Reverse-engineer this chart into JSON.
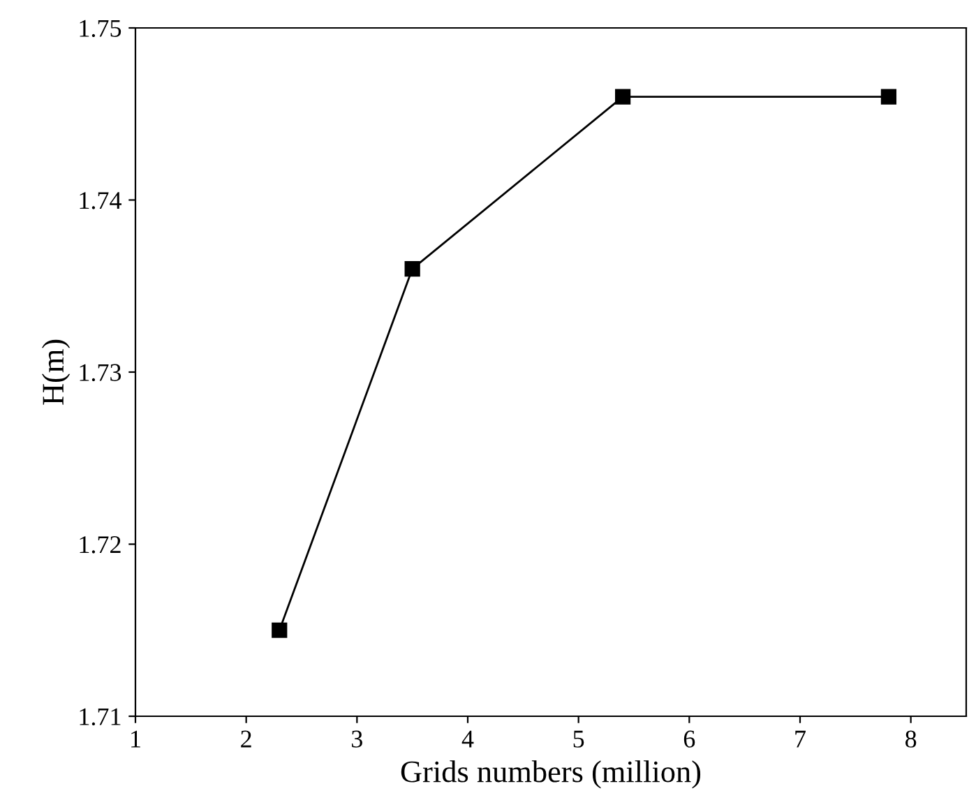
{
  "chart_data": {
    "type": "line",
    "xlabel": "Grids numbers (million)",
    "ylabel": "H(m)",
    "x": [
      2.3,
      3.5,
      5.4,
      7.8
    ],
    "series": [
      {
        "color": "#000000",
        "values": [
          1.715,
          1.736,
          1.746,
          1.746
        ]
      }
    ],
    "xlim": [
      1,
      8.5
    ],
    "xticks": [
      1,
      2,
      3,
      4,
      5,
      6,
      7,
      8
    ],
    "ylim": [
      1.71,
      1.75
    ],
    "yticks": [
      1.71,
      1.72,
      1.73,
      1.74,
      1.75
    ],
    "marker": "square",
    "line_style": "solid",
    "grid": false,
    "legend": false
  }
}
